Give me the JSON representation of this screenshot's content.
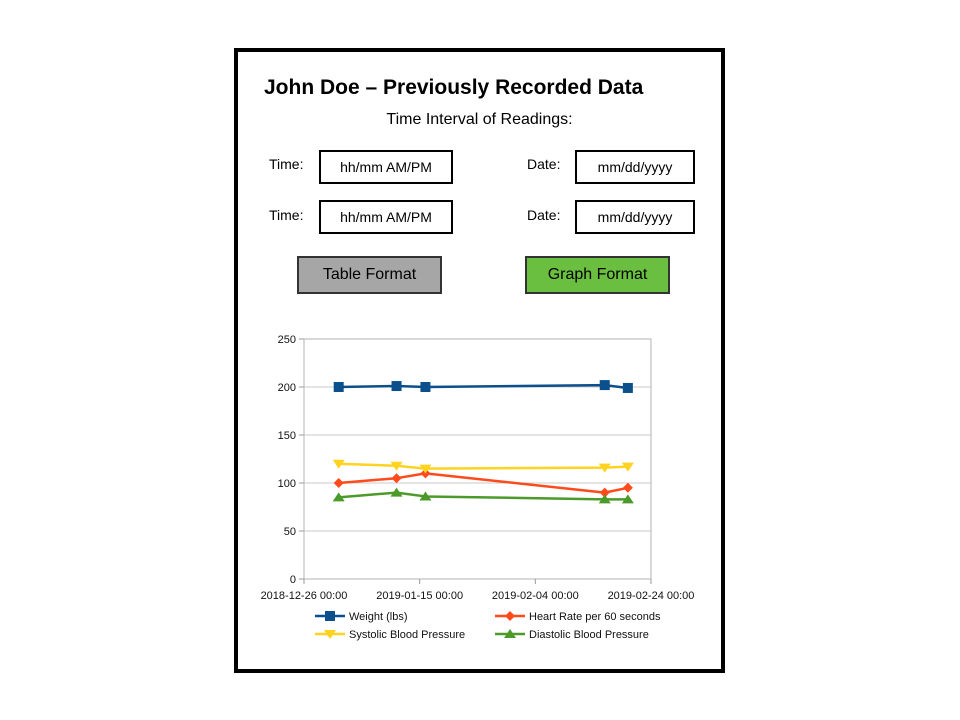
{
  "header": {
    "title": "John Doe – Previously Recorded Data",
    "subtitle": "Time Interval of Readings:"
  },
  "form": {
    "rows": [
      {
        "time_label": "Time:",
        "time_placeholder": "hh/mm AM/PM",
        "date_label": "Date:",
        "date_placeholder": "mm/dd/yyyy"
      },
      {
        "time_label": "Time:",
        "time_placeholder": "hh/mm AM/PM",
        "date_label": "Date:",
        "date_placeholder": "mm/dd/yyyy"
      }
    ]
  },
  "buttons": {
    "table_label": "Table Format",
    "graph_label": "Graph Format"
  },
  "colors": {
    "table_button": "#a6a6a6",
    "graph_button": "#6abf40",
    "weight": "#0b4f8c",
    "heart_rate": "#ff4a1c",
    "systolic": "#ffd31f",
    "diastolic": "#4c9a2a"
  },
  "chart_data": {
    "type": "line",
    "ylim": [
      0,
      250
    ],
    "yticks": [
      "0",
      "50",
      "100",
      "150",
      "200",
      "250"
    ],
    "xlim": [
      "2018-12-26 00:00",
      "2019-02-24 00:00"
    ],
    "xticks": [
      "2018-12-26 00:00",
      "2019-01-15 00:00",
      "2019-02-04 00:00",
      "2019-02-24 00:00"
    ],
    "grid": "horizontal",
    "legend_position": "bottom",
    "series": [
      {
        "name": "Weight (lbs)",
        "marker": "square",
        "color": "#0b4f8c",
        "x": [
          "2019-01-01",
          "2019-01-11",
          "2019-01-16",
          "2019-02-16",
          "2019-02-20"
        ],
        "values": [
          200,
          201,
          200,
          202,
          199
        ]
      },
      {
        "name": "Heart Rate per 60 seconds",
        "marker": "diamond",
        "color": "#ff4a1c",
        "x": [
          "2019-01-01",
          "2019-01-11",
          "2019-01-16",
          "2019-02-16",
          "2019-02-20"
        ],
        "values": [
          100,
          105,
          110,
          90,
          95
        ]
      },
      {
        "name": "Systolic Blood Pressure",
        "marker": "triangle-down",
        "color": "#ffd31f",
        "x": [
          "2019-01-01",
          "2019-01-11",
          "2019-01-16",
          "2019-02-16",
          "2019-02-20"
        ],
        "values": [
          120,
          118,
          115,
          116,
          117
        ]
      },
      {
        "name": "Diastolic Blood Pressure",
        "marker": "triangle-up",
        "color": "#4c9a2a",
        "x": [
          "2019-01-01",
          "2019-01-11",
          "2019-01-16",
          "2019-02-16",
          "2019-02-20"
        ],
        "values": [
          85,
          90,
          86,
          83,
          83
        ]
      }
    ]
  }
}
